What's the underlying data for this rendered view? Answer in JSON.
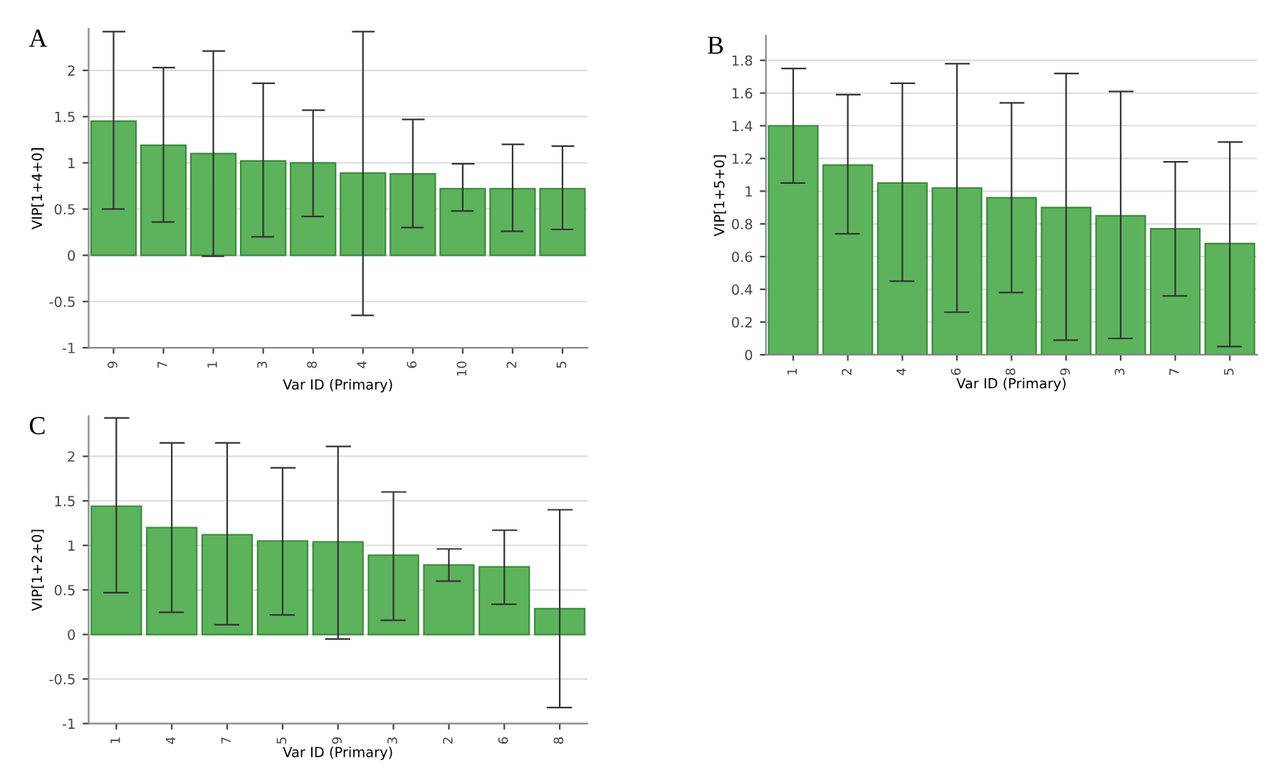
{
  "chart_data": [
    {
      "type": "bar",
      "title": "A",
      "xlabel": "Var ID (Primary)",
      "ylabel": "VIP[1+4+0]",
      "categories": [
        "9",
        "7",
        "1",
        "3",
        "8",
        "4",
        "6",
        "10",
        "2",
        "5"
      ],
      "values": [
        1.45,
        1.19,
        1.1,
        1.02,
        1.0,
        0.89,
        0.88,
        0.72,
        0.72,
        0.72
      ],
      "errors": [
        [
          0.5,
          2.42
        ],
        [
          0.36,
          2.03
        ],
        [
          -0.01,
          2.21
        ],
        [
          0.2,
          1.86
        ],
        [
          0.42,
          1.57
        ],
        [
          -0.65,
          2.42
        ],
        [
          0.3,
          1.47
        ],
        [
          0.48,
          0.99
        ],
        [
          0.26,
          1.2
        ],
        [
          0.28,
          1.18
        ]
      ],
      "color": "#5cb35c",
      "ylim": [
        -1,
        2.45
      ],
      "yticks": [
        -1,
        -0.5,
        0,
        0.5,
        1,
        1.5,
        2
      ],
      "grid": "y"
    },
    {
      "type": "bar",
      "title": "B",
      "xlabel": "Var ID (Primary)",
      "ylabel": "VIP[1+5+0]",
      "categories": [
        "1",
        "2",
        "4",
        "6",
        "8",
        "9",
        "3",
        "7",
        "5"
      ],
      "values": [
        1.4,
        1.16,
        1.05,
        1.02,
        0.96,
        0.9,
        0.85,
        0.77,
        0.68
      ],
      "errors": [
        [
          1.05,
          1.75
        ],
        [
          0.74,
          1.59
        ],
        [
          0.45,
          1.66
        ],
        [
          0.26,
          1.78
        ],
        [
          0.38,
          1.54
        ],
        [
          0.09,
          1.72
        ],
        [
          0.1,
          1.61
        ],
        [
          0.36,
          1.18
        ],
        [
          0.05,
          1.3
        ]
      ],
      "color": "#5cb35c",
      "ylim": [
        0,
        1.95
      ],
      "yticks": [
        0,
        0.2,
        0.4,
        0.6,
        0.8,
        1,
        1.2,
        1.4,
        1.6,
        1.8
      ],
      "grid": "y"
    },
    {
      "type": "bar",
      "title": "C",
      "xlabel": "Var ID (Primary)",
      "ylabel": "VIP[1+2+0]",
      "categories": [
        "1",
        "4",
        "7",
        "5",
        "9",
        "3",
        "2",
        "6",
        "8"
      ],
      "values": [
        1.44,
        1.2,
        1.12,
        1.05,
        1.04,
        0.89,
        0.78,
        0.76,
        0.29
      ],
      "errors": [
        [
          0.47,
          2.43
        ],
        [
          0.25,
          2.15
        ],
        [
          0.11,
          2.15
        ],
        [
          0.22,
          1.87
        ],
        [
          -0.05,
          2.11
        ],
        [
          0.16,
          1.6
        ],
        [
          0.6,
          0.96
        ],
        [
          0.34,
          1.17
        ],
        [
          -0.82,
          1.4
        ]
      ],
      "color": "#5cb35c",
      "ylim": [
        -1,
        2.45
      ],
      "yticks": [
        -1,
        -0.5,
        0,
        0.5,
        1,
        1.5,
        2
      ],
      "grid": "y"
    }
  ]
}
